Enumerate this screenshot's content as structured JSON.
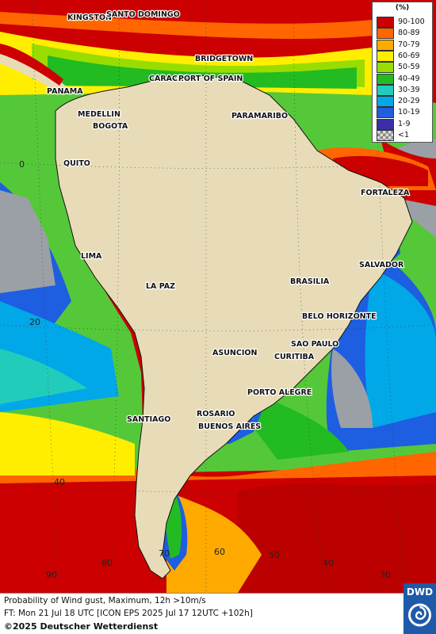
{
  "legend": {
    "unit": "(%)",
    "entries": [
      {
        "label": "90-100",
        "color": "#cc0000"
      },
      {
        "label": "80-89",
        "color": "#ff6600"
      },
      {
        "label": "70-79",
        "color": "#ffaa00"
      },
      {
        "label": "60-69",
        "color": "#ffee00"
      },
      {
        "label": "50-59",
        "color": "#99dd00"
      },
      {
        "label": "40-49",
        "color": "#22bb22"
      },
      {
        "label": "30-39",
        "color": "#22ccbb"
      },
      {
        "label": "20-29",
        "color": "#00a8e8"
      },
      {
        "label": "10-19",
        "color": "#1e5ee0"
      },
      {
        "label": "1-9",
        "color": "#3a2fa8"
      },
      {
        "label": "<1",
        "color": "#c8c8c8"
      }
    ]
  },
  "cities": [
    "KINGSTON",
    "SANTO DOMINGO",
    "BRIDGETOWN",
    "CARACAS",
    "PORT OF SPAIN",
    "PANAMA",
    "MEDELLIN",
    "BOGOTA",
    "PARAMARIBO",
    "QUITO",
    "FORTALEZA",
    "LIMA",
    "SALVADOR",
    "BRASILIA",
    "LA PAZ",
    "BELO HORIZONTE",
    "SAO PAULO",
    "ASUNCION",
    "CURITIBA",
    "PORTO ALEGRE",
    "ROSARIO",
    "BUENOS AIRES",
    "SANTIAGO"
  ],
  "grid_labels": [
    "0",
    "20",
    "40",
    "60",
    "90",
    "80",
    "70",
    "50",
    "40",
    "30"
  ],
  "footer": {
    "line1": "Probability of Wind gust, Maximum, 12h >10m/s",
    "line2": "FT: Mon 21 Jul 18 UTC [ICON EPS 2025 Jul 17 12UTC +102h]",
    "line3": "©2025 Deutscher Wetterdienst"
  },
  "logo": {
    "text": "DWD",
    "color": "#1e5aa8"
  }
}
